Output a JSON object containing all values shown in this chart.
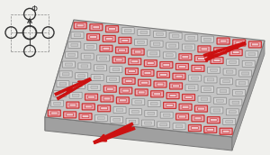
{
  "fig_width": 3.0,
  "fig_height": 1.72,
  "dpi": 100,
  "bg_color": "#f0f0ed",
  "slab_top_color": "#c4c4c4",
  "slab_left_color": "#909090",
  "slab_bottom_color": "#a0a0a0",
  "slab_edge_color": "#777777",
  "res_inactive_fc": "#d2d2d2",
  "res_inactive_ec": "#888888",
  "res_active_fc": "#e8a8b0",
  "res_active_ec": "#cc3333",
  "arrow_color": "#cc1111",
  "inset_ring_color": "#333333",
  "inset_line_color": "#444444"
}
